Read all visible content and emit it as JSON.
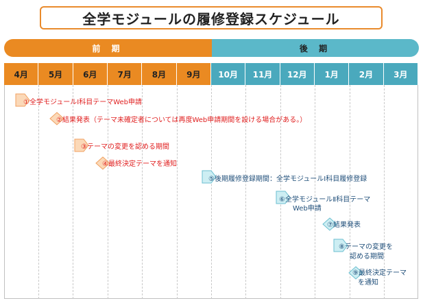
{
  "title": "全学モジュールの履修登録スケジュール",
  "periods": {
    "first": "前 期",
    "second": "後 期"
  },
  "months": [
    "4月",
    "5月",
    "6月",
    "7月",
    "8月",
    "9月",
    "10月",
    "11月",
    "12月",
    "1月",
    "2月",
    "3月"
  ],
  "colors": {
    "orange": "#ea8a22",
    "teal": "#4aa9bd",
    "red": "#e02020",
    "navy": "#1f4e79"
  },
  "events": [
    {
      "num": "①",
      "text": "全学モジュールⅠ科目テーマWeb申請"
    },
    {
      "num": "②",
      "text": "結果発表（テーマ未確定者については再度Web申請期間を設ける場合がある。）"
    },
    {
      "num": "③",
      "text": "テーマの変更を認める期間"
    },
    {
      "num": "④",
      "text": "最終決定テーマを通知"
    },
    {
      "num": "⑤",
      "text": "後期履修登録期間：全学モジュールⅠ科目履修登録"
    },
    {
      "num": "⑥",
      "text1": "全学モジュールⅡ科目テーマ",
      "text2": "Web申請"
    },
    {
      "num": "⑦",
      "text": "結果発表"
    },
    {
      "num": "⑧",
      "text1": "テーマの変更を",
      "text2": "認める期間"
    },
    {
      "num": "⑨",
      "text1": "最終決定テーマ",
      "text2": "を通知"
    }
  ]
}
